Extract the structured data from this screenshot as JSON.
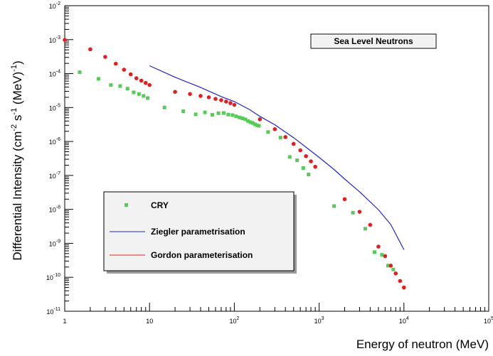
{
  "chart_data": {
    "type": "scatter",
    "title": "Sea Level Neutrons",
    "xlabel": "Energy of neutron (MeV)",
    "ylabel": "Differential Intensity (cm-2 s-1 (MeV)-1)",
    "xscale": "log",
    "yscale": "log",
    "xlim": [
      1,
      100000
    ],
    "ylim": [
      1e-11,
      0.01
    ],
    "grid": false,
    "legend_position": "bottom-left",
    "x_tick_labels": [
      {
        "base": "1",
        "exp": ""
      },
      {
        "base": "10",
        "exp": ""
      },
      {
        "base": "10",
        "exp": "2"
      },
      {
        "base": "10",
        "exp": "3"
      },
      {
        "base": "10",
        "exp": "4"
      },
      {
        "base": "10",
        "exp": "5"
      }
    ],
    "y_tick_labels": [
      {
        "base": "10",
        "exp": "-2"
      },
      {
        "base": "10",
        "exp": "-3"
      },
      {
        "base": "10",
        "exp": "-4"
      },
      {
        "base": "10",
        "exp": "-5"
      },
      {
        "base": "10",
        "exp": "-6"
      },
      {
        "base": "10",
        "exp": "-7"
      },
      {
        "base": "10",
        "exp": "-8"
      },
      {
        "base": "10",
        "exp": "-9"
      },
      {
        "base": "10",
        "exp": "-10"
      },
      {
        "base": "10",
        "exp": "-11"
      }
    ],
    "series": [
      {
        "name": "CRY",
        "style": "square-marker",
        "color": "#55cc55",
        "points": [
          [
            1.5,
            0.00011
          ],
          [
            2.5,
            7e-05
          ],
          [
            3.5,
            4.6e-05
          ],
          [
            4.5,
            4.3e-05
          ],
          [
            5.5,
            3.6e-05
          ],
          [
            6.5,
            2.8e-05
          ],
          [
            7.5,
            2.5e-05
          ],
          [
            8.5,
            2.2e-05
          ],
          [
            9.5,
            1.9e-05
          ],
          [
            15,
            1e-05
          ],
          [
            25,
            7.8e-06
          ],
          [
            35,
            6.3e-06
          ],
          [
            45,
            7.2e-06
          ],
          [
            55,
            6.1e-06
          ],
          [
            65,
            6.8e-06
          ],
          [
            75,
            6.9e-06
          ],
          [
            85,
            6.2e-06
          ],
          [
            95,
            6e-06
          ],
          [
            105,
            5.5e-06
          ],
          [
            115,
            5.1e-06
          ],
          [
            125,
            4.8e-06
          ],
          [
            135,
            4.5e-06
          ],
          [
            145,
            4e-06
          ],
          [
            155,
            3.7e-06
          ],
          [
            165,
            3.5e-06
          ],
          [
            175,
            3.2e-06
          ],
          [
            185,
            3e-06
          ],
          [
            195,
            2.9e-06
          ],
          [
            250,
            1.9e-06
          ],
          [
            350,
            1.3e-06
          ],
          [
            450,
            3.5e-07
          ],
          [
            550,
            2.8e-07
          ],
          [
            650,
            1.65e-07
          ],
          [
            750,
            1.07e-07
          ],
          [
            1500,
            1.25e-08
          ],
          [
            2500,
            8e-09
          ],
          [
            3500,
            2.7e-09
          ],
          [
            4500,
            5.5e-10
          ],
          [
            5500,
            4.6e-10
          ],
          [
            6500,
            2.2e-10
          ],
          [
            7500,
            1.7e-10
          ]
        ]
      },
      {
        "name": "Ziegler parametrisation",
        "style": "line",
        "color": "#2222cc",
        "points": [
          [
            10,
            0.00017
          ],
          [
            20,
            7.8e-05
          ],
          [
            40,
            3.9e-05
          ],
          [
            70,
            2.1e-05
          ],
          [
            100,
            1.5e-05
          ],
          [
            150,
            8.8e-06
          ],
          [
            200,
            5.5e-06
          ],
          [
            300,
            3.1e-06
          ],
          [
            500,
            1.3e-06
          ],
          [
            700,
            6.8e-07
          ],
          [
            1000,
            3.4e-07
          ],
          [
            1500,
            1.5e-07
          ],
          [
            2000,
            7.8e-08
          ],
          [
            3000,
            3.3e-08
          ],
          [
            5000,
            9.8e-09
          ],
          [
            7000,
            3.6e-09
          ],
          [
            10000,
            6.5e-10
          ]
        ]
      },
      {
        "name": "Gordon parameterisation",
        "style": "round-marker",
        "color": "#e02020",
        "points": [
          [
            1,
            0.00098
          ],
          [
            2,
            0.00052
          ],
          [
            3,
            0.00031
          ],
          [
            4,
            0.000195
          ],
          [
            5,
            0.00013
          ],
          [
            6,
            9.5e-05
          ],
          [
            7,
            7.3e-05
          ],
          [
            8,
            6.2e-05
          ],
          [
            9,
            5.3e-05
          ],
          [
            10,
            4.6e-05
          ],
          [
            20,
            2.9e-05
          ],
          [
            30,
            2.5e-05
          ],
          [
            40,
            2.2e-05
          ],
          [
            50,
            2e-05
          ],
          [
            60,
            1.8e-05
          ],
          [
            70,
            1.65e-05
          ],
          [
            80,
            1.5e-05
          ],
          [
            90,
            1.35e-05
          ],
          [
            100,
            1.2e-05
          ],
          [
            200,
            4.5e-06
          ],
          [
            300,
            2.3e-06
          ],
          [
            400,
            1.35e-06
          ],
          [
            500,
            8.5e-07
          ],
          [
            600,
            5.5e-07
          ],
          [
            700,
            3.7e-07
          ],
          [
            800,
            2.6e-07
          ],
          [
            900,
            1.8e-07
          ],
          [
            2000,
            2e-08
          ],
          [
            3000,
            8.5e-09
          ],
          [
            4000,
            3.5e-09
          ],
          [
            5000,
            8e-10
          ],
          [
            6000,
            4.2e-10
          ],
          [
            7000,
            2.2e-10
          ],
          [
            8000,
            1.3e-10
          ],
          [
            9000,
            7.8e-11
          ],
          [
            10000,
            5e-11
          ]
        ]
      }
    ]
  },
  "ylabel_parts": {
    "prefix": "Differential Intensity (cm",
    "sup1": "-2",
    "mid1": " s",
    "sup2": "-1",
    "mid2": " (MeV)",
    "sup3": "-1",
    "suffix": ")"
  },
  "colors": {
    "cry": "#55cc55",
    "ziegler": "#2222cc",
    "gordon": "#e02020",
    "legend_bg": "#f2f2f2",
    "title_bg": "#f2f2f2"
  }
}
